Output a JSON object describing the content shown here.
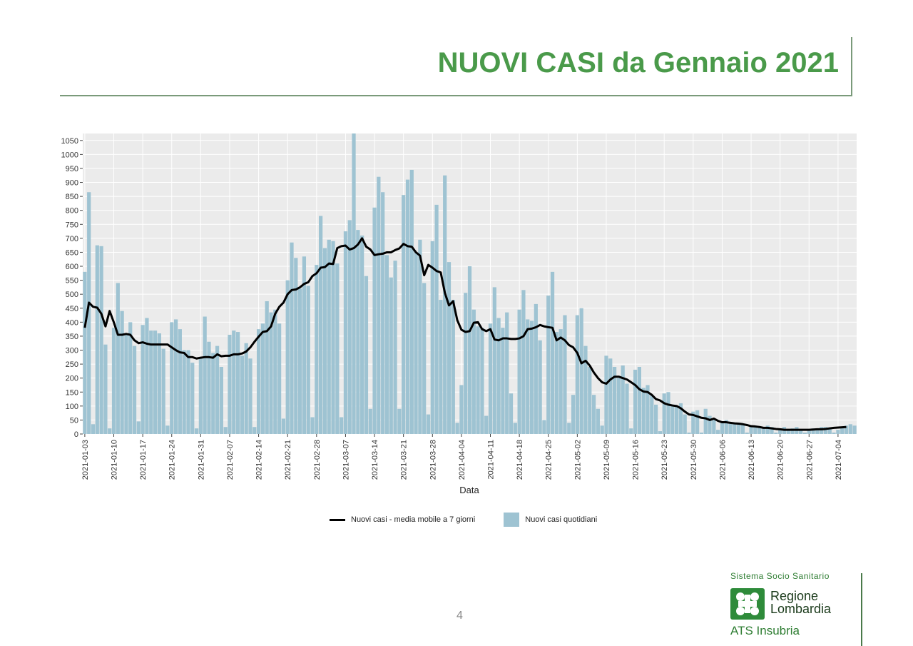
{
  "page": {
    "title": "NUOVI CASI da Gennaio 2021",
    "page_number": "4"
  },
  "legend": {
    "line_label": "Nuovi casi - media mobile a 7 giorni",
    "bar_label": "Nuovi casi quotidiani"
  },
  "logo": {
    "top_text": "Sistema Socio Sanitario",
    "name_line1": "Regione",
    "name_line2": "Lombardia",
    "sub_text": "ATS Insubria"
  },
  "colors": {
    "title": "#4a9a4a",
    "bars": "#9ec3d2",
    "line": "#000000",
    "panel": "#ebebeb"
  },
  "chart_data": {
    "type": "bar",
    "title": "",
    "xlabel": "Data",
    "ylabel": "",
    "ylim": [
      0,
      1075
    ],
    "y_ticks": [
      0,
      50,
      100,
      150,
      200,
      250,
      300,
      350,
      400,
      450,
      500,
      550,
      600,
      650,
      700,
      750,
      800,
      850,
      900,
      950,
      1000,
      1050
    ],
    "x_tick_labels": [
      "2021-01-03",
      "2021-01-10",
      "2021-01-17",
      "2021-01-24",
      "2021-01-31",
      "2021-02-07",
      "2021-02-14",
      "2021-02-21",
      "2021-02-28",
      "2021-03-07",
      "2021-03-14",
      "2021-03-21",
      "2021-03-28",
      "2021-04-04",
      "2021-04-11",
      "2021-04-18",
      "2021-04-25",
      "2021-05-02",
      "2021-05-09",
      "2021-05-16",
      "2021-05-23",
      "2021-05-30",
      "2021-06-06",
      "2021-06-13",
      "2021-06-20",
      "2021-06-27",
      "2021-07-04"
    ],
    "start_date": "2021-01-03",
    "grid": true,
    "legend_position": "bottom",
    "series": [
      {
        "name": "Nuovi casi quotidiani",
        "type": "bar",
        "values": [
          580,
          865,
          35,
          675,
          672,
          320,
          20,
          380,
          540,
          440,
          355,
          400,
          315,
          45,
          390,
          415,
          370,
          370,
          360,
          305,
          30,
          400,
          410,
          375,
          300,
          300,
          255,
          20,
          275,
          420,
          330,
          290,
          315,
          240,
          25,
          355,
          370,
          365,
          280,
          325,
          270,
          25,
          375,
          395,
          475,
          435,
          445,
          395,
          55,
          550,
          685,
          630,
          520,
          635,
          530,
          60,
          605,
          780,
          665,
          695,
          690,
          610,
          60,
          725,
          765,
          1075,
          730,
          710,
          565,
          90,
          810,
          920,
          865,
          640,
          560,
          620,
          90,
          855,
          910,
          945,
          650,
          695,
          540,
          70,
          690,
          820,
          480,
          925,
          615,
          480,
          40,
          175,
          505,
          600,
          445,
          385,
          380,
          65,
          395,
          525,
          415,
          380,
          435,
          145,
          40,
          445,
          515,
          410,
          405,
          465,
          335,
          50,
          495,
          580,
          365,
          375,
          425,
          40,
          140,
          425,
          450,
          315,
          240,
          140,
          90,
          30,
          280,
          270,
          240,
          200,
          245,
          180,
          20,
          230,
          240,
          165,
          175,
          140,
          105,
          10,
          145,
          150,
          105,
          100,
          110,
          70,
          5,
          80,
          85,
          5,
          90,
          65,
          50,
          15,
          45,
          50,
          40,
          35,
          40,
          35,
          5,
          30,
          30,
          25,
          22,
          30,
          25,
          5,
          20,
          25,
          15,
          20,
          25,
          15,
          5,
          15,
          20,
          15,
          25,
          25,
          20,
          5,
          15,
          25,
          30,
          35,
          30
        ]
      },
      {
        "name": "Nuovi casi - media mobile a 7 giorni",
        "type": "line",
        "values": [
          380,
          470,
          455,
          452,
          430,
          385,
          440,
          400,
          355,
          355,
          358,
          355,
          335,
          325,
          328,
          323,
          320,
          320,
          320,
          320,
          320,
          310,
          300,
          292,
          290,
          275,
          275,
          270,
          273,
          275,
          275,
          273,
          285,
          278,
          280,
          280,
          285,
          285,
          288,
          295,
          310,
          330,
          348,
          365,
          368,
          385,
          430,
          455,
          470,
          500,
          515,
          517,
          525,
          537,
          543,
          565,
          575,
          595,
          597,
          610,
          608,
          665,
          672,
          674,
          660,
          665,
          678,
          700,
          670,
          660,
          640,
          643,
          645,
          650,
          650,
          658,
          664,
          680,
          672,
          670,
          650,
          638,
          568,
          605,
          595,
          583,
          578,
          505,
          460,
          475,
          407,
          373,
          365,
          368,
          398,
          400,
          375,
          368,
          375,
          338,
          335,
          342,
          342,
          340,
          340,
          342,
          350,
          375,
          377,
          382,
          390,
          385,
          382,
          380,
          335,
          345,
          335,
          318,
          310,
          290,
          253,
          262,
          245,
          220,
          200,
          185,
          180,
          195,
          205,
          205,
          200,
          195,
          185,
          175,
          160,
          152,
          150,
          140,
          125,
          120,
          110,
          105,
          102,
          100,
          92,
          80,
          70,
          68,
          63,
          58,
          56,
          50,
          55,
          47,
          42,
          42,
          40,
          38,
          37,
          35,
          32,
          28,
          27,
          25,
          22,
          22,
          20,
          18,
          17,
          15,
          15,
          15,
          15,
          15,
          15,
          15,
          16,
          17,
          17,
          18,
          20,
          22,
          23,
          24,
          25
        ]
      }
    ]
  }
}
